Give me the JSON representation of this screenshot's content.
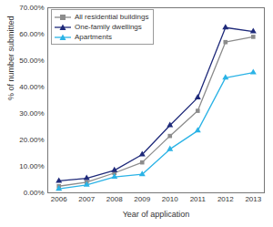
{
  "chart_data": {
    "type": "line",
    "x_label": "Year of application",
    "y_label": "% of number submitted",
    "x": [
      2006,
      2007,
      2008,
      2009,
      2010,
      2011,
      2012,
      2013
    ],
    "series": [
      {
        "name": "All residential buildings",
        "color": "#8c8c8c",
        "marker": "square",
        "line_style": "solid",
        "values": [
          2.5,
          4,
          7.5,
          11.5,
          21.5,
          31,
          57,
          59
        ]
      },
      {
        "name": "One-family dwellings",
        "color": "#1f2a7a",
        "marker": "triangle",
        "line_style": "solid",
        "values": [
          4.5,
          5.5,
          8.5,
          14.5,
          25.5,
          36,
          62.5,
          61
        ]
      },
      {
        "name": "Apartments",
        "color": "#2bb3e6",
        "marker": "triangle",
        "line_style": "solid",
        "values": [
          1.5,
          3,
          6,
          7,
          16.5,
          23.5,
          43.5,
          45.5
        ]
      }
    ],
    "xlim": [
      2005.6,
      2013.4
    ],
    "xticks": [
      2006,
      2007,
      2008,
      2009,
      2010,
      2011,
      2012,
      2013
    ],
    "ylim": [
      0,
      70
    ],
    "yticks": [
      {
        "value": 0,
        "label": "0.00%"
      },
      {
        "value": 10,
        "label": "10.00%"
      },
      {
        "value": 20,
        "label": "20.00%"
      },
      {
        "value": 30,
        "label": "30.00%"
      },
      {
        "value": 40,
        "label": "40.00%"
      },
      {
        "value": 50,
        "label": "50.00%"
      },
      {
        "value": 60,
        "label": "60.00%"
      },
      {
        "value": 70,
        "label": "70.00%"
      }
    ],
    "grid": false,
    "legend": "top-left"
  }
}
